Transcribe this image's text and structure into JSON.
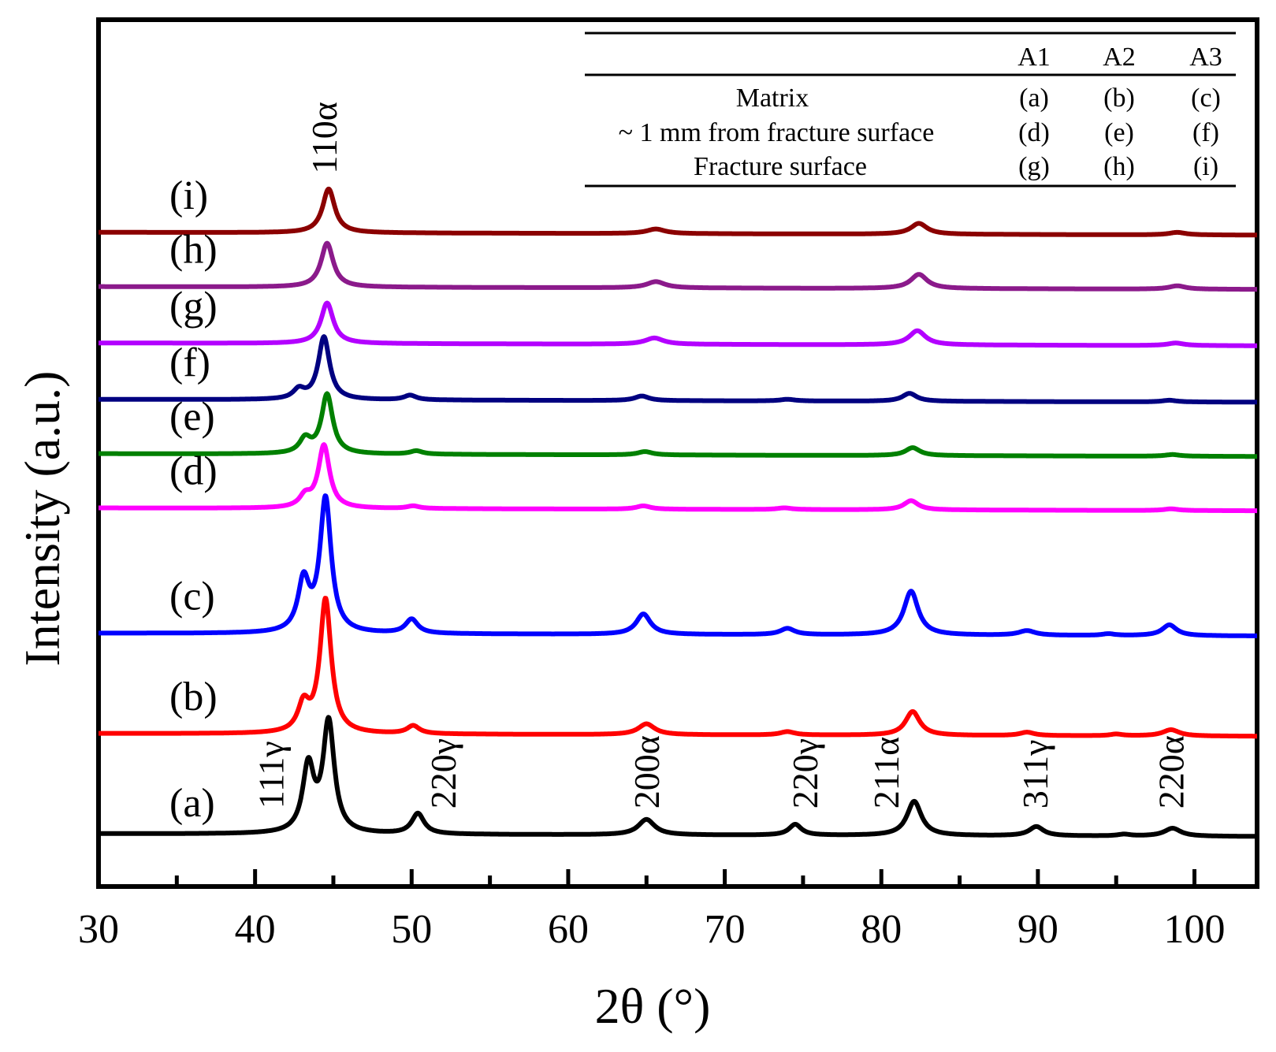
{
  "chart_data": {
    "type": "line",
    "title": "",
    "xlabel": "2θ (°)",
    "ylabel": "Intensity (a.u.)",
    "xlim": [
      30,
      104
    ],
    "x_ticks": [
      30,
      40,
      50,
      60,
      70,
      80,
      90,
      100
    ],
    "grid": false,
    "legend": "none",
    "baseline_spacing": 1,
    "series": [
      {
        "name": "(a)",
        "color": "#000000",
        "baseline": 0,
        "peaks": [
          {
            "x": 43.4,
            "h": 1.57,
            "w": 0.55
          },
          {
            "x": 44.7,
            "h": 2.64,
            "w": 0.55
          },
          {
            "x": 50.4,
            "h": 0.49,
            "w": 0.6
          },
          {
            "x": 65.0,
            "h": 0.37,
            "w": 0.8
          },
          {
            "x": 74.5,
            "h": 0.26,
            "w": 0.6
          },
          {
            "x": 82.1,
            "h": 0.82,
            "w": 0.7
          },
          {
            "x": 89.9,
            "h": 0.22,
            "w": 0.7
          },
          {
            "x": 95.5,
            "h": 0.04,
            "w": 0.6
          },
          {
            "x": 98.6,
            "h": 0.19,
            "w": 0.8
          }
        ]
      },
      {
        "name": "(b)",
        "color": "#ff0000",
        "baseline": 2.4,
        "peaks": [
          {
            "x": 43.1,
            "h": 0.64,
            "w": 0.55
          },
          {
            "x": 44.5,
            "h": 3.2,
            "w": 0.55
          },
          {
            "x": 50.1,
            "h": 0.19,
            "w": 0.6
          },
          {
            "x": 65.0,
            "h": 0.26,
            "w": 0.8
          },
          {
            "x": 74.0,
            "h": 0.08,
            "w": 0.7
          },
          {
            "x": 82.0,
            "h": 0.57,
            "w": 0.7
          },
          {
            "x": 89.3,
            "h": 0.08,
            "w": 0.7
          },
          {
            "x": 95.0,
            "h": 0.04,
            "w": 0.6
          },
          {
            "x": 98.5,
            "h": 0.15,
            "w": 0.8
          }
        ]
      },
      {
        "name": "(c)",
        "color": "#0000ff",
        "baseline": 4.8,
        "peaks": [
          {
            "x": 43.1,
            "h": 1.2,
            "w": 0.55
          },
          {
            "x": 44.5,
            "h": 3.2,
            "w": 0.55
          },
          {
            "x": 50.0,
            "h": 0.34,
            "w": 0.6
          },
          {
            "x": 64.8,
            "h": 0.49,
            "w": 0.7
          },
          {
            "x": 74.0,
            "h": 0.15,
            "w": 0.7
          },
          {
            "x": 81.9,
            "h": 1.05,
            "w": 0.7
          },
          {
            "x": 89.3,
            "h": 0.11,
            "w": 0.8
          },
          {
            "x": 94.5,
            "h": 0.04,
            "w": 0.6
          },
          {
            "x": 98.4,
            "h": 0.26,
            "w": 0.7
          }
        ]
      },
      {
        "name": "(d)",
        "color": "#ff00ff",
        "baseline": 7.8,
        "peaks": [
          {
            "x": 43.2,
            "h": 0.26,
            "w": 0.55
          },
          {
            "x": 44.4,
            "h": 1.5,
            "w": 0.55
          },
          {
            "x": 50.1,
            "h": 0.06,
            "w": 0.6
          },
          {
            "x": 64.8,
            "h": 0.08,
            "w": 0.7
          },
          {
            "x": 73.8,
            "h": 0.04,
            "w": 0.7
          },
          {
            "x": 81.9,
            "h": 0.22,
            "w": 0.7
          },
          {
            "x": 98.5,
            "h": 0.04,
            "w": 0.7
          }
        ]
      },
      {
        "name": "(e)",
        "color": "#008000",
        "baseline": 9.1,
        "peaks": [
          {
            "x": 43.2,
            "h": 0.34,
            "w": 0.55
          },
          {
            "x": 44.6,
            "h": 1.42,
            "w": 0.55
          },
          {
            "x": 50.3,
            "h": 0.08,
            "w": 0.6
          },
          {
            "x": 64.9,
            "h": 0.08,
            "w": 0.7
          },
          {
            "x": 82.0,
            "h": 0.19,
            "w": 0.7
          },
          {
            "x": 98.6,
            "h": 0.04,
            "w": 0.7
          }
        ]
      },
      {
        "name": "(f)",
        "color": "#000080",
        "baseline": 10.4,
        "peaks": [
          {
            "x": 42.8,
            "h": 0.22,
            "w": 0.55
          },
          {
            "x": 44.4,
            "h": 1.5,
            "w": 0.55
          },
          {
            "x": 49.9,
            "h": 0.11,
            "w": 0.6
          },
          {
            "x": 64.7,
            "h": 0.11,
            "w": 0.7
          },
          {
            "x": 74.0,
            "h": 0.04,
            "w": 0.7
          },
          {
            "x": 81.8,
            "h": 0.19,
            "w": 0.7
          },
          {
            "x": 98.4,
            "h": 0.04,
            "w": 0.7
          }
        ]
      },
      {
        "name": "(g)",
        "color": "#b300ff",
        "baseline": 11.75,
        "peaks": [
          {
            "x": 44.6,
            "h": 0.97,
            "w": 0.6
          },
          {
            "x": 65.5,
            "h": 0.15,
            "w": 0.9
          },
          {
            "x": 82.3,
            "h": 0.34,
            "w": 0.8
          },
          {
            "x": 98.8,
            "h": 0.06,
            "w": 0.8
          }
        ]
      },
      {
        "name": "(h)",
        "color": "#8b1a8b",
        "baseline": 13.1,
        "peaks": [
          {
            "x": 44.6,
            "h": 1.05,
            "w": 0.6
          },
          {
            "x": 65.6,
            "h": 0.15,
            "w": 0.9
          },
          {
            "x": 82.4,
            "h": 0.34,
            "w": 0.8
          },
          {
            "x": 98.9,
            "h": 0.08,
            "w": 0.8
          }
        ]
      },
      {
        "name": "(i)",
        "color": "#8b0000",
        "baseline": 14.4,
        "peaks": [
          {
            "x": 44.7,
            "h": 1.05,
            "w": 0.6
          },
          {
            "x": 65.6,
            "h": 0.11,
            "w": 0.9
          },
          {
            "x": 82.4,
            "h": 0.26,
            "w": 0.8
          },
          {
            "x": 98.9,
            "h": 0.06,
            "w": 0.8
          }
        ]
      }
    ],
    "annotations": [
      {
        "text": "110α",
        "x": 45.2,
        "y": 15.8
      },
      {
        "text": "111γ",
        "x": 41.8,
        "y": 0.6
      },
      {
        "text": "220γ",
        "x": 52.8,
        "y": 0.6
      },
      {
        "text": "200α",
        "x": 65.8,
        "y": 0.6
      },
      {
        "text": "220γ",
        "x": 75.9,
        "y": 0.6
      },
      {
        "text": "211α",
        "x": 81.1,
        "y": 0.6
      },
      {
        "text": "311γ",
        "x": 90.6,
        "y": 0.6
      },
      {
        "text": "220α",
        "x": 99.3,
        "y": 0.6
      }
    ],
    "inset_table": {
      "columns": [
        "A1",
        "A2",
        "A3"
      ],
      "rows": [
        {
          "label": "Matrix",
          "cells": [
            "(a)",
            "(b)",
            "(c)"
          ]
        },
        {
          "label": "~ 1 mm from fracture surface",
          "cells": [
            "(d)",
            "(e)",
            "(f)"
          ]
        },
        {
          "label": "Fracture surface",
          "cells": [
            "(g)",
            "(h)",
            "(i)"
          ]
        }
      ]
    }
  }
}
